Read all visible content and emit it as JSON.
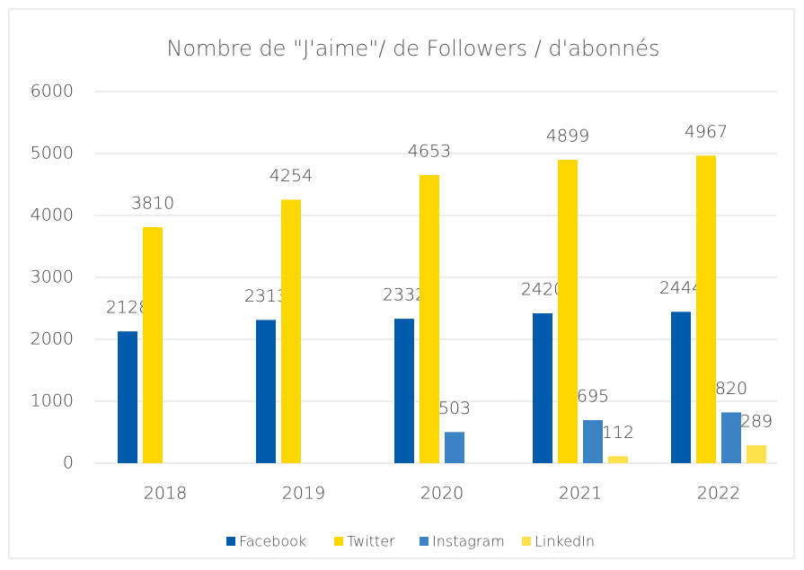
{
  "chart_data": {
    "type": "bar",
    "title": "Nombre de \"J'aime\"/ de Followers / d'abonnés",
    "categories": [
      "2018",
      "2019",
      "2020",
      "2021",
      "2022"
    ],
    "series": [
      {
        "name": "Facebook",
        "color": "#005bac",
        "values": [
          2128,
          2313,
          2332,
          2420,
          2444
        ]
      },
      {
        "name": "Twitter",
        "color": "#ffd700",
        "values": [
          3810,
          4254,
          4653,
          4899,
          4967
        ]
      },
      {
        "name": "Instagram",
        "color": "#3b83c5",
        "values": [
          null,
          null,
          503,
          695,
          820
        ]
      },
      {
        "name": "LinkedIn",
        "color": "#ffe14d",
        "values": [
          null,
          null,
          null,
          112,
          289
        ]
      }
    ],
    "ylim": [
      0,
      6000
    ],
    "yticks": [
      0,
      1000,
      2000,
      3000,
      4000,
      5000,
      6000
    ],
    "grid": true,
    "legend": "bottom"
  }
}
